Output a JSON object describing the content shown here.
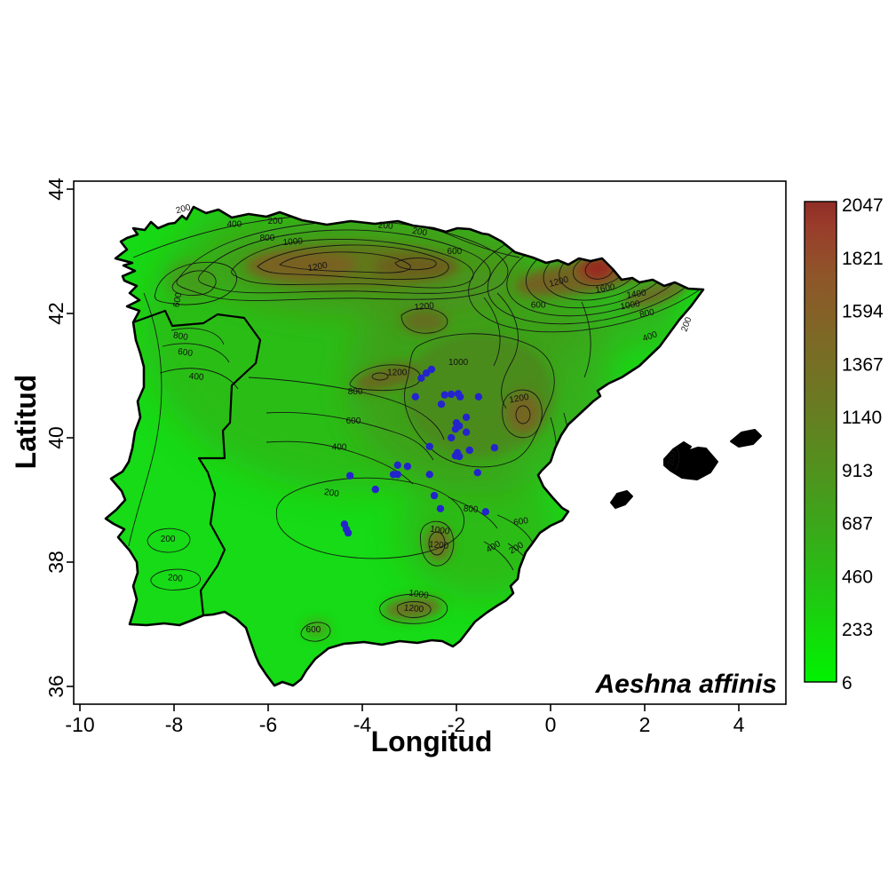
{
  "figure": {
    "species_label": "Aeshna affinis",
    "background": "#ffffff"
  },
  "axes": {
    "x": {
      "title": "Longitud",
      "ticks": [
        -10,
        -8,
        -6,
        -4,
        -2,
        0,
        2,
        4
      ]
    },
    "y": {
      "title": "Latitud",
      "ticks": [
        44,
        42,
        40,
        38,
        36
      ]
    }
  },
  "colorbar": {
    "ticks": [
      2047,
      1821,
      1594,
      1367,
      1140,
      913,
      687,
      460,
      233,
      6
    ],
    "min": 6,
    "max": 2047,
    "gradient_top_to_bottom": [
      {
        "o": 0.0,
        "c": "#8f2d27"
      },
      {
        "o": 0.05,
        "c": "#9a3c2b"
      },
      {
        "o": 0.15,
        "c": "#8f5529"
      },
      {
        "o": 0.28,
        "c": "#7e6826"
      },
      {
        "o": 0.42,
        "c": "#6a7a22"
      },
      {
        "o": 0.55,
        "c": "#53901e"
      },
      {
        "o": 0.68,
        "c": "#3aa81a"
      },
      {
        "o": 0.8,
        "c": "#24c313"
      },
      {
        "o": 0.9,
        "c": "#12dc0a"
      },
      {
        "o": 1.0,
        "c": "#01f201"
      }
    ]
  },
  "colors": {
    "land_low": "#16db16",
    "coast_line": "#000000",
    "contour_line": "#141414",
    "occurrence_point": "#2424cd"
  },
  "chart_data": {
    "type": "scatter",
    "subtype": "filled-contour-map-with-occurrences",
    "title": "",
    "xlabel": "Longitud",
    "ylabel": "Latitud",
    "xlim": [
      -10.1,
      4.9
    ],
    "ylim": [
      35.7,
      44.1
    ],
    "x_ticks": [
      -10,
      -8,
      -6,
      -4,
      -2,
      0,
      2,
      4
    ],
    "y_ticks": [
      44,
      42,
      40,
      38,
      36
    ],
    "grid": false,
    "legend_position": "right-colorbar",
    "colorbar_ticks": [
      2047,
      1821,
      1594,
      1367,
      1140,
      913,
      687,
      460,
      233,
      6
    ],
    "species": "Aeshna affinis",
    "contour_levels": [
      200,
      400,
      600,
      800,
      1000,
      1200,
      1400,
      1600
    ],
    "occurrences": [
      [
        -2.53,
        41.1
      ],
      [
        -2.64,
        41.04
      ],
      [
        -2.75,
        40.96
      ],
      [
        -2.87,
        40.66
      ],
      [
        -2.32,
        40.54
      ],
      [
        -2.25,
        40.69
      ],
      [
        -2.11,
        40.7
      ],
      [
        -1.96,
        40.71
      ],
      [
        -1.92,
        40.66
      ],
      [
        -1.53,
        40.66
      ],
      [
        -1.79,
        40.33
      ],
      [
        -2.0,
        40.24
      ],
      [
        -1.94,
        40.19
      ],
      [
        -2.02,
        40.14
      ],
      [
        -1.79,
        40.09
      ],
      [
        -2.11,
        40.0
      ],
      [
        -2.57,
        39.86
      ],
      [
        -1.98,
        39.76
      ],
      [
        -2.02,
        39.71
      ],
      [
        -1.94,
        39.7
      ],
      [
        -1.72,
        39.8
      ],
      [
        -1.19,
        39.84
      ],
      [
        -1.55,
        39.44
      ],
      [
        -3.25,
        39.56
      ],
      [
        -3.04,
        39.54
      ],
      [
        -3.34,
        39.41
      ],
      [
        -3.25,
        39.41
      ],
      [
        -4.26,
        39.39
      ],
      [
        -2.57,
        39.41
      ],
      [
        -3.72,
        39.17
      ],
      [
        -2.47,
        39.07
      ],
      [
        -2.34,
        38.86
      ],
      [
        -1.38,
        38.81
      ],
      [
        -4.38,
        38.61
      ],
      [
        -4.34,
        38.53
      ],
      [
        -4.3,
        38.47
      ]
    ],
    "contour_labels": [
      {
        "v": 200,
        "lon": -7.79,
        "lat": 43.64,
        "rot": -15
      },
      {
        "v": 200,
        "lon": -5.85,
        "lat": 43.44,
        "rot": 0
      },
      {
        "v": 200,
        "lon": -3.51,
        "lat": 43.37,
        "rot": 5
      },
      {
        "v": 200,
        "lon": -2.79,
        "lat": 43.27,
        "rot": 10
      },
      {
        "v": 400,
        "lon": -6.72,
        "lat": 43.39,
        "rot": 0
      },
      {
        "v": 800,
        "lon": -6.02,
        "lat": 43.17,
        "rot": 0
      },
      {
        "v": 1000,
        "lon": -5.47,
        "lat": 43.11,
        "rot": -5
      },
      {
        "v": 1200,
        "lon": -4.94,
        "lat": 42.71,
        "rot": -10
      },
      {
        "v": 600,
        "lon": -2.04,
        "lat": 42.96,
        "rot": 0
      },
      {
        "v": 1200,
        "lon": 0.19,
        "lat": 42.47,
        "rot": -15
      },
      {
        "v": 1600,
        "lon": 1.17,
        "lat": 42.36,
        "rot": -10
      },
      {
        "v": 1400,
        "lon": 1.83,
        "lat": 42.27,
        "rot": -8
      },
      {
        "v": 1000,
        "lon": 1.7,
        "lat": 42.09,
        "rot": -10
      },
      {
        "v": 800,
        "lon": 2.06,
        "lat": 41.96,
        "rot": -12
      },
      {
        "v": 600,
        "lon": -0.26,
        "lat": 42.09,
        "rot": 0
      },
      {
        "v": 400,
        "lon": 2.13,
        "lat": 41.59,
        "rot": -20
      },
      {
        "v": 200,
        "lon": 2.94,
        "lat": 41.81,
        "rot": -70
      },
      {
        "v": 600,
        "lon": -7.87,
        "lat": 42.21,
        "rot": -80
      },
      {
        "v": 800,
        "lon": -7.87,
        "lat": 41.59,
        "rot": 10
      },
      {
        "v": 600,
        "lon": -7.77,
        "lat": 41.33,
        "rot": 8
      },
      {
        "v": 400,
        "lon": -7.53,
        "lat": 40.94,
        "rot": 5
      },
      {
        "v": 1200,
        "lon": -2.68,
        "lat": 42.07,
        "rot": -5
      },
      {
        "v": 1200,
        "lon": -3.26,
        "lat": 41.01,
        "rot": 0
      },
      {
        "v": 1000,
        "lon": -1.96,
        "lat": 41.17,
        "rot": 0
      },
      {
        "v": 800,
        "lon": -4.15,
        "lat": 40.7,
        "rot": 0
      },
      {
        "v": 600,
        "lon": -4.19,
        "lat": 40.23,
        "rot": 0
      },
      {
        "v": 400,
        "lon": -4.49,
        "lat": 39.81,
        "rot": 0
      },
      {
        "v": 1200,
        "lon": -0.66,
        "lat": 40.59,
        "rot": -10
      },
      {
        "v": 800,
        "lon": -1.7,
        "lat": 38.81,
        "rot": 5
      },
      {
        "v": 600,
        "lon": -0.62,
        "lat": 38.61,
        "rot": -10
      },
      {
        "v": 1000,
        "lon": -2.36,
        "lat": 38.47,
        "rot": 8
      },
      {
        "v": 1200,
        "lon": -2.38,
        "lat": 38.23,
        "rot": 5
      },
      {
        "v": 400,
        "lon": -1.19,
        "lat": 38.21,
        "rot": -30
      },
      {
        "v": 200,
        "lon": -0.7,
        "lat": 38.19,
        "rot": -30
      },
      {
        "v": 200,
        "lon": -4.66,
        "lat": 39.07,
        "rot": 8
      },
      {
        "v": 200,
        "lon": -8.13,
        "lat": 38.33,
        "rot": 0
      },
      {
        "v": 200,
        "lon": -7.98,
        "lat": 37.7,
        "rot": 5
      },
      {
        "v": 1000,
        "lon": -2.81,
        "lat": 37.44,
        "rot": 8
      },
      {
        "v": 1200,
        "lon": -2.91,
        "lat": 37.21,
        "rot": 5
      },
      {
        "v": 600,
        "lon": -5.04,
        "lat": 36.87,
        "rot": 0
      },
      {
        "v": 200,
        "lon": 2.64,
        "lat": 39.66,
        "rot": -75
      }
    ]
  }
}
